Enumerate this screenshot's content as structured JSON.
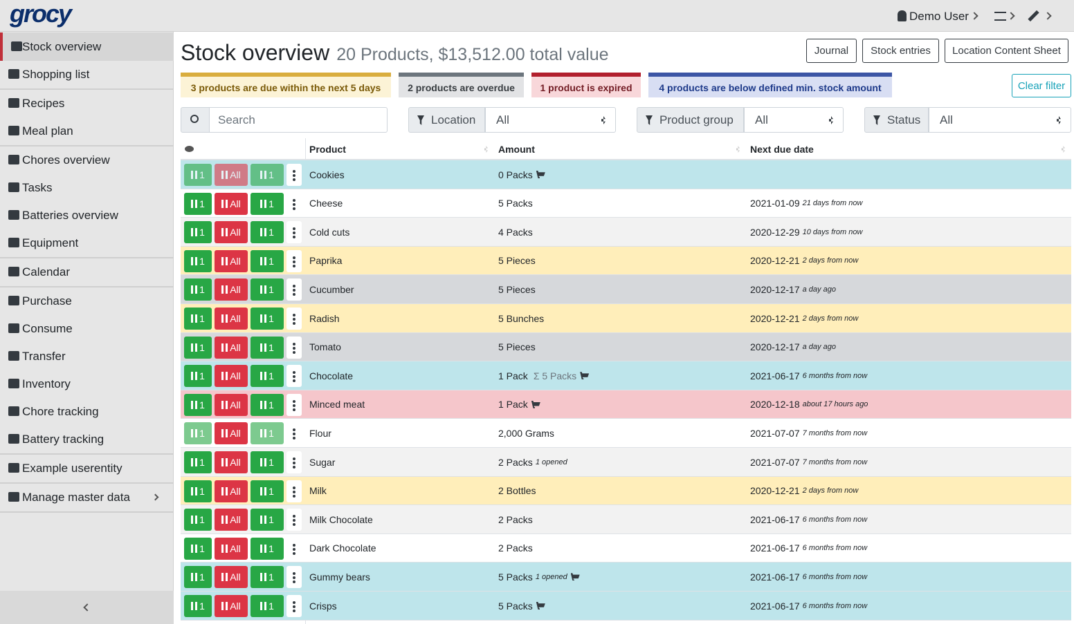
{
  "brand": "grocy",
  "user": "Demo User",
  "sidebar": {
    "groups": [
      [
        {
          "label": "Stock overview",
          "active": true
        },
        {
          "label": "Shopping list"
        }
      ],
      [
        {
          "label": "Recipes"
        },
        {
          "label": "Meal plan"
        }
      ],
      [
        {
          "label": "Chores overview"
        },
        {
          "label": "Tasks"
        },
        {
          "label": "Batteries overview"
        },
        {
          "label": "Equipment"
        }
      ],
      [
        {
          "label": "Calendar"
        }
      ],
      [
        {
          "label": "Purchase"
        },
        {
          "label": "Consume"
        },
        {
          "label": "Transfer"
        },
        {
          "label": "Inventory"
        },
        {
          "label": "Chore tracking"
        },
        {
          "label": "Battery tracking"
        }
      ],
      [
        {
          "label": "Example userentity"
        }
      ],
      [
        {
          "label": "Manage master data",
          "submenu": true
        }
      ]
    ]
  },
  "header": {
    "title": "Stock overview",
    "subtitle": "20 Products, $13,512.00 total value",
    "buttons": [
      "Journal",
      "Stock entries",
      "Location Content Sheet"
    ]
  },
  "alerts": [
    "3 products are due within the next 5 days",
    "2 products are overdue",
    "1 product is expired",
    "4 products are below defined min. stock amount"
  ],
  "clear_filter": "Clear filter",
  "filters": {
    "search_placeholder": "Search",
    "selects": [
      {
        "label": "Location",
        "value": "All"
      },
      {
        "label": "Product group",
        "value": "All"
      },
      {
        "label": "Status",
        "value": "All"
      }
    ]
  },
  "table": {
    "columns": [
      "Product",
      "Amount",
      "Next due date"
    ],
    "row_actions": [
      "1",
      "All",
      "1"
    ],
    "rows": [
      {
        "product": "Cookies",
        "amount": "0 Packs",
        "cart": true,
        "state": "info",
        "disabled_actions": [
          0,
          1,
          2
        ]
      },
      {
        "product": "Cheese",
        "amount": "5 Packs",
        "due_date": "2021-01-09",
        "relative": "21 days from now"
      },
      {
        "product": "Cold cuts",
        "amount": "4 Packs",
        "due_date": "2020-12-29",
        "relative": "10 days from now"
      },
      {
        "product": "Paprika",
        "amount": "5 Pieces",
        "due_date": "2020-12-21",
        "relative": "2 days from now",
        "state": "warning"
      },
      {
        "product": "Cucumber",
        "amount": "5 Pieces",
        "due_date": "2020-12-17",
        "relative": "a day ago",
        "state": "secondary"
      },
      {
        "product": "Radish",
        "amount": "5 Bunches",
        "due_date": "2020-12-21",
        "relative": "2 days from now",
        "state": "warning"
      },
      {
        "product": "Tomato",
        "amount": "5 Pieces",
        "due_date": "2020-12-17",
        "relative": "a day ago",
        "state": "secondary"
      },
      {
        "product": "Chocolate",
        "amount": "1 Pack",
        "aggregate": "Σ 5 Packs",
        "cart": true,
        "due_date": "2021-06-17",
        "relative": "6 months from now",
        "state": "info"
      },
      {
        "product": "Minced meat",
        "amount": "1 Pack",
        "cart": true,
        "due_date": "2020-12-18",
        "relative": "about 17 hours ago",
        "state": "danger"
      },
      {
        "product": "Flour",
        "amount": "2,000 Grams",
        "due_date": "2021-07-07",
        "relative": "7 months from now",
        "disabled_actions": [
          0,
          2
        ]
      },
      {
        "product": "Sugar",
        "amount": "2 Packs",
        "note": "1 opened",
        "due_date": "2021-07-07",
        "relative": "7 months from now"
      },
      {
        "product": "Milk",
        "amount": "2 Bottles",
        "due_date": "2020-12-21",
        "relative": "2 days from now",
        "state": "warning"
      },
      {
        "product": "Milk Chocolate",
        "amount": "2 Packs",
        "due_date": "2021-06-17",
        "relative": "6 months from now"
      },
      {
        "product": "Dark Chocolate",
        "amount": "2 Packs",
        "due_date": "2021-06-17",
        "relative": "6 months from now"
      },
      {
        "product": "Gummy bears",
        "amount": "5 Packs",
        "note": "1 opened",
        "cart": true,
        "due_date": "2021-06-17",
        "relative": "6 months from now",
        "state": "info"
      },
      {
        "product": "Crisps",
        "amount": "5 Packs",
        "cart": true,
        "due_date": "2021-06-17",
        "relative": "6 months from now",
        "state": "info"
      }
    ]
  }
}
